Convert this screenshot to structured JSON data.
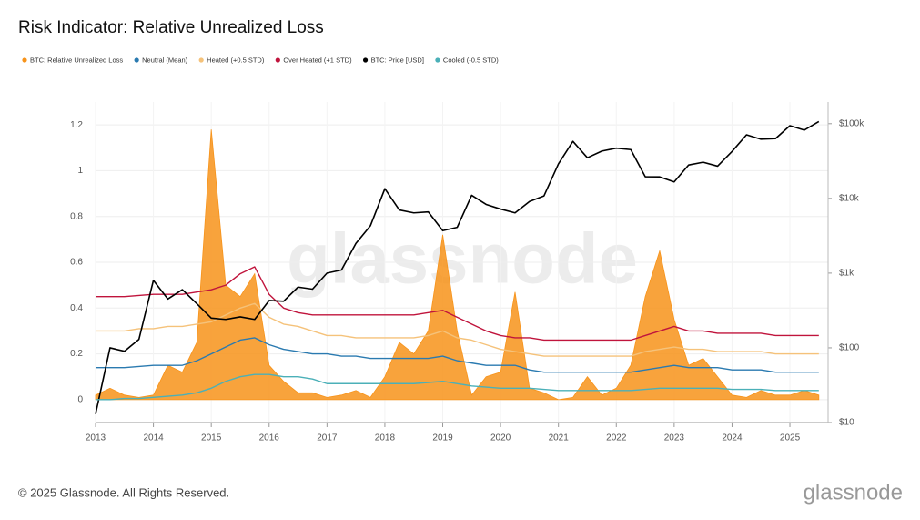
{
  "chart_data": {
    "type": "line",
    "title": "Risk Indicator: Relative Unrealized Loss",
    "watermark": "glassnode",
    "footer": "© 2025 Glassnode. All Rights Reserved.",
    "logo": "glassnode",
    "x": [
      2013,
      2013.25,
      2013.5,
      2013.75,
      2014,
      2014.25,
      2014.5,
      2014.75,
      2015,
      2015.25,
      2015.5,
      2015.75,
      2016,
      2016.25,
      2016.5,
      2016.75,
      2017,
      2017.25,
      2017.5,
      2017.75,
      2018,
      2018.25,
      2018.5,
      2018.75,
      2019,
      2019.25,
      2019.5,
      2019.75,
      2020,
      2020.25,
      2020.5,
      2020.75,
      2021,
      2021.25,
      2021.5,
      2021.75,
      2022,
      2022.25,
      2022.5,
      2022.75,
      2023,
      2023.25,
      2023.5,
      2023.75,
      2024,
      2024.25,
      2024.5,
      2024.75,
      2025,
      2025.25,
      2025.5
    ],
    "xlim": [
      2013,
      2025.66
    ],
    "xticks": [
      2013,
      2014,
      2015,
      2016,
      2017,
      2018,
      2019,
      2020,
      2021,
      2022,
      2023,
      2024,
      2025
    ],
    "ylim": [
      -0.1,
      1.3
    ],
    "yticks": [
      0,
      0.2,
      0.4,
      0.6,
      0.8,
      1,
      1.2
    ],
    "y2lim": [
      10,
      195000
    ],
    "y2scale": "log",
    "y2ticks": [
      {
        "value": 10,
        "label": "$10"
      },
      {
        "value": 100,
        "label": "$100"
      },
      {
        "value": 1000,
        "label": "$1k"
      },
      {
        "value": 10000,
        "label": "$10k"
      },
      {
        "value": 100000,
        "label": "$100k"
      }
    ],
    "grid": true,
    "legend": "top-left",
    "series": [
      {
        "name": "BTC: Relative Unrealized Loss",
        "color": "#f7931a",
        "style": "area",
        "values": [
          0.02,
          0.05,
          0.02,
          0.01,
          0.02,
          0.15,
          0.12,
          0.25,
          1.18,
          0.5,
          0.45,
          0.55,
          0.15,
          0.08,
          0.03,
          0.03,
          0.01,
          0.02,
          0.04,
          0.01,
          0.1,
          0.25,
          0.2,
          0.3,
          0.72,
          0.3,
          0.02,
          0.1,
          0.12,
          0.47,
          0.05,
          0.03,
          0,
          0.01,
          0.1,
          0.02,
          0.05,
          0.15,
          0.45,
          0.65,
          0.35,
          0.15,
          0.18,
          0.1,
          0.02,
          0.01,
          0.04,
          0.02,
          0.02,
          0.04,
          0.02
        ]
      },
      {
        "name": "Neutral (Mean)",
        "color": "#2a7ab0",
        "values": [
          0.14,
          0.14,
          0.14,
          0.145,
          0.15,
          0.15,
          0.15,
          0.17,
          0.2,
          0.23,
          0.26,
          0.27,
          0.24,
          0.22,
          0.21,
          0.2,
          0.2,
          0.19,
          0.19,
          0.18,
          0.18,
          0.18,
          0.18,
          0.18,
          0.19,
          0.17,
          0.16,
          0.15,
          0.15,
          0.15,
          0.13,
          0.12,
          0.12,
          0.12,
          0.12,
          0.12,
          0.12,
          0.12,
          0.13,
          0.14,
          0.15,
          0.14,
          0.14,
          0.14,
          0.13,
          0.13,
          0.13,
          0.12,
          0.12,
          0.12,
          0.12
        ]
      },
      {
        "name": "Heated (+0.5 STD)",
        "color": "#f5c27a",
        "values": [
          0.3,
          0.3,
          0.3,
          0.31,
          0.31,
          0.32,
          0.32,
          0.33,
          0.34,
          0.37,
          0.4,
          0.42,
          0.36,
          0.33,
          0.32,
          0.3,
          0.28,
          0.28,
          0.27,
          0.27,
          0.27,
          0.27,
          0.27,
          0.28,
          0.3,
          0.27,
          0.26,
          0.24,
          0.22,
          0.21,
          0.2,
          0.19,
          0.19,
          0.19,
          0.19,
          0.19,
          0.19,
          0.19,
          0.21,
          0.22,
          0.23,
          0.22,
          0.22,
          0.21,
          0.21,
          0.21,
          0.21,
          0.2,
          0.2,
          0.2,
          0.2
        ]
      },
      {
        "name": "Over Heated (+1 STD)",
        "color": "#c0143c",
        "values": [
          0.45,
          0.45,
          0.45,
          0.455,
          0.46,
          0.46,
          0.46,
          0.47,
          0.48,
          0.5,
          0.55,
          0.58,
          0.46,
          0.4,
          0.38,
          0.37,
          0.37,
          0.37,
          0.37,
          0.37,
          0.37,
          0.37,
          0.37,
          0.38,
          0.39,
          0.36,
          0.33,
          0.3,
          0.28,
          0.27,
          0.27,
          0.26,
          0.26,
          0.26,
          0.26,
          0.26,
          0.26,
          0.26,
          0.28,
          0.3,
          0.32,
          0.3,
          0.3,
          0.29,
          0.29,
          0.29,
          0.29,
          0.28,
          0.28,
          0.28,
          0.28
        ]
      },
      {
        "name": "BTC: Price [USD]",
        "color": "#000000",
        "axis": "y2",
        "values": [
          13,
          100,
          90,
          130,
          800,
          450,
          600,
          390,
          250,
          240,
          260,
          240,
          430,
          420,
          650,
          610,
          1000,
          1100,
          2500,
          4300,
          13500,
          7000,
          6400,
          6600,
          3700,
          4100,
          11000,
          8300,
          7200,
          6400,
          9100,
          10800,
          29000,
          58000,
          35000,
          43000,
          47000,
          45000,
          19500,
          19400,
          16600,
          28000,
          30500,
          27000,
          42500,
          71000,
          62000,
          63000,
          94000,
          82000,
          107000
        ]
      },
      {
        "name": "Cooled (-0.5 STD)",
        "color": "#4bb0b8",
        "values": [
          0,
          0,
          0.005,
          0.005,
          0.01,
          0.015,
          0.02,
          0.03,
          0.05,
          0.08,
          0.1,
          0.11,
          0.11,
          0.1,
          0.1,
          0.09,
          0.07,
          0.07,
          0.07,
          0.07,
          0.07,
          0.07,
          0.07,
          0.075,
          0.08,
          0.07,
          0.06,
          0.055,
          0.05,
          0.05,
          0.05,
          0.045,
          0.04,
          0.04,
          0.04,
          0.04,
          0.04,
          0.04,
          0.045,
          0.05,
          0.05,
          0.05,
          0.05,
          0.05,
          0.045,
          0.045,
          0.045,
          0.04,
          0.04,
          0.04,
          0.04
        ]
      }
    ]
  }
}
